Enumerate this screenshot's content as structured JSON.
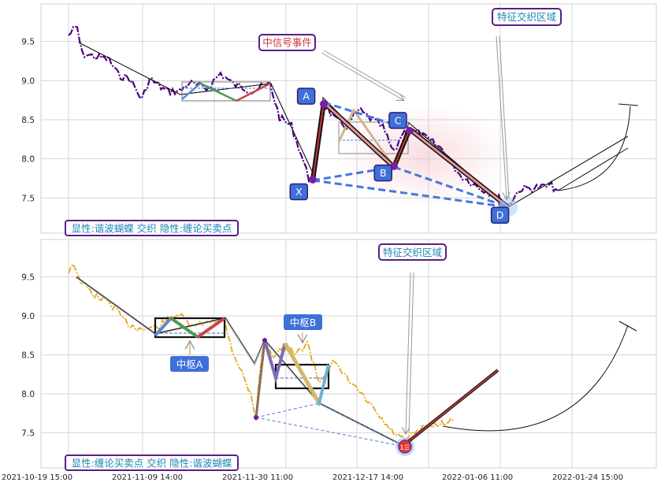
{
  "chart_data": [
    {
      "type": "line",
      "panel": "top",
      "ylim": [
        7.05,
        9.98
      ],
      "yticks": [
        7.5,
        8.0,
        8.5,
        9.0,
        9.5
      ],
      "grid": true,
      "price_color": "#4b0082",
      "caption": "显性:谐波蝴蝶 交织 隐性:缠论买卖点",
      "annotations": {
        "signal_event": "中信号事件",
        "feature_zone": "特征交织区域"
      },
      "points": [
        {
          "label": "X",
          "x": 0.419,
          "y": 7.7
        },
        {
          "label": "A",
          "x": 0.431,
          "y": 8.68
        },
        {
          "label": "B",
          "x": 0.556,
          "y": 7.94
        },
        {
          "label": "C",
          "x": 0.58,
          "y": 8.37
        },
        {
          "label": "D",
          "x": 0.746,
          "y": 7.4
        }
      ]
    },
    {
      "type": "line",
      "panel": "bottom",
      "ylim": [
        7.05,
        9.98
      ],
      "yticks": [
        7.5,
        8.0,
        8.5,
        9.0,
        9.5
      ],
      "grid": true,
      "price_color": "#e6a817",
      "caption": "显性:缠论买卖点 交织 隐性:谐波蝴蝶",
      "annotations": {
        "feature_zone": "特征交织区域",
        "center_a": "中枢A",
        "center_b": "中枢B",
        "buy_point": "1三"
      },
      "x_tick_labels": [
        "2021-10-19 15:00",
        "2021-11-09 14:00",
        "2021-11-30 11:00",
        "2021-12-17 14:00",
        "2022-01-06 11:00",
        "2022-01-24 15:00"
      ]
    }
  ]
}
